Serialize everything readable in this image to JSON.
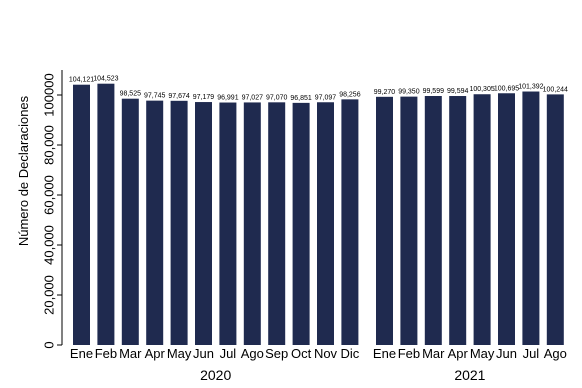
{
  "chart_data": {
    "type": "bar",
    "ylabel": "Número de Declaraciones",
    "xlabel": "",
    "ylim": [
      0,
      110000
    ],
    "yticks": [
      0,
      20000,
      40000,
      60000,
      80000,
      100000
    ],
    "ytick_labels": [
      "0",
      "20,000",
      "40,000",
      "60,000",
      "80,000",
      "100000"
    ],
    "bar_color": "#1f2a4f",
    "grid": false,
    "groups": [
      {
        "name": "2020",
        "categories": [
          "Ene",
          "Feb",
          "Mar",
          "Apr",
          "May",
          "Jun",
          "Jul",
          "Ago",
          "Sep",
          "Oct",
          "Nov",
          "Dic"
        ],
        "values": [
          104121,
          104523,
          98525,
          97745,
          97674,
          97179,
          96991,
          97027,
          97070,
          96851,
          97097,
          98256
        ],
        "value_labels": [
          "104,121",
          "104,523",
          "98,525",
          "97,745",
          "97,674",
          "97,179",
          "96,991",
          "97,027",
          "97,070",
          "96,851",
          "97,097",
          "98,256"
        ]
      },
      {
        "name": "2021",
        "categories": [
          "Ene",
          "Feb",
          "Mar",
          "Apr",
          "May",
          "Jun",
          "Jul",
          "Ago"
        ],
        "values": [
          99270,
          99350,
          99599,
          99594,
          100305,
          100695,
          101392,
          100244
        ],
        "value_labels": [
          "99,270",
          "99,350",
          "99,599",
          "99,594",
          "100,305",
          "100,695",
          "101,392",
          "100,244"
        ]
      }
    ]
  }
}
